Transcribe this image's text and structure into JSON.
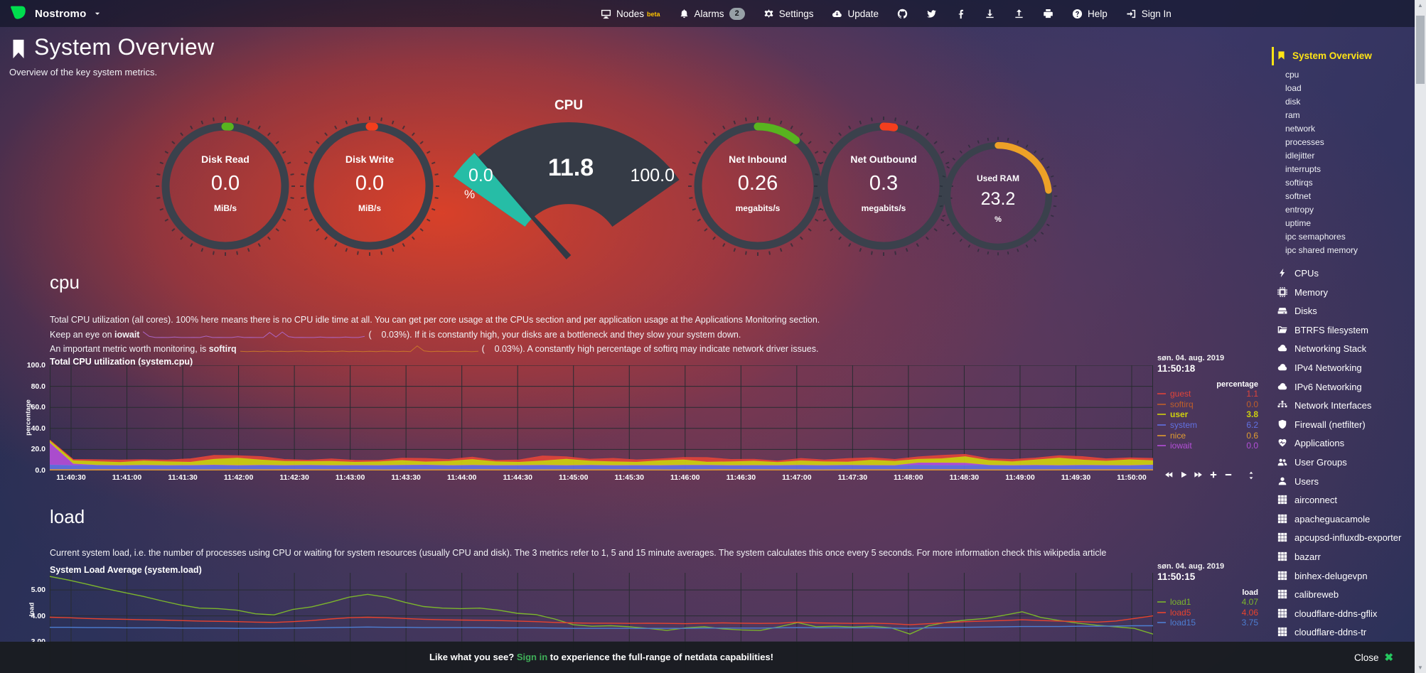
{
  "topbar": {
    "brand": "Nostromo",
    "items": [
      {
        "id": "nodes",
        "label": "Nodes",
        "sup": "beta",
        "icon": "desktop"
      },
      {
        "id": "alarms",
        "label": "Alarms",
        "badge": "2",
        "icon": "bell"
      },
      {
        "id": "settings",
        "label": "Settings",
        "icon": "gear"
      },
      {
        "id": "update",
        "label": "Update",
        "icon": "cloud-download"
      },
      {
        "id": "github",
        "icon": "github"
      },
      {
        "id": "twitter",
        "icon": "twitter"
      },
      {
        "id": "facebook",
        "icon": "facebook"
      },
      {
        "id": "download",
        "icon": "download"
      },
      {
        "id": "upload",
        "icon": "upload"
      },
      {
        "id": "print",
        "icon": "print"
      },
      {
        "id": "help",
        "label": "Help",
        "icon": "question"
      },
      {
        "id": "signin",
        "label": "Sign In",
        "icon": "sign-in"
      }
    ]
  },
  "header": {
    "title": "System Overview",
    "subtitle": "Overview of the key system metrics."
  },
  "gauges": {
    "items": [
      {
        "kind": "pie",
        "title": "Disk Read",
        "value": "0.0",
        "unit": "MiB/s",
        "color": "#58b41f",
        "fraction": 0.012
      },
      {
        "kind": "pie",
        "title": "Disk Write",
        "value": "0.0",
        "unit": "MiB/s",
        "color": "#f43e1d",
        "fraction": 0.012
      },
      {
        "kind": "meter",
        "title": "CPU",
        "value": "11.8",
        "min": "0.0",
        "max": "100.0",
        "unit": "%",
        "color": "#26bda6",
        "fraction": 0.118
      },
      {
        "kind": "pie",
        "title": "Net Inbound",
        "value": "0.26",
        "unit": "megabits/s",
        "color": "#58b41f",
        "fraction": 0.11
      },
      {
        "kind": "pie",
        "title": "Net Outbound",
        "value": "0.3",
        "unit": "megabits/s",
        "color": "#f43e1d",
        "fraction": 0.028
      },
      {
        "kind": "pie",
        "title": "Used RAM",
        "value": "23.2",
        "unit": "%",
        "color": "#eda127",
        "fraction": 0.232
      }
    ]
  },
  "cpu_section": {
    "heading": "cpu",
    "line1": "Total CPU utilization (all cores). 100% here means there is no CPU idle time at all. You can get per core usage at the CPUs section and per application usage at the Applications Monitoring section.",
    "line2_pre": "Keep an eye on ",
    "line2_term": "iowait",
    "line2_post": "(    0.03%). If it is constantly high, your disks are a bottleneck and they slow your system down.",
    "line3_pre": "An important metric worth monitoring, is ",
    "line3_term": "softirq",
    "line3_post": "(    0.03%). A constantly high percentage of softirq may indicate network driver issues.",
    "spark_iowait": [
      0.85,
      0.25,
      0.1,
      0.12,
      0.1,
      0.15,
      0.1,
      0.1,
      0.12,
      0.1,
      0.28,
      0.1,
      0.12,
      0.1,
      0.1,
      0.2,
      0.1,
      0.12,
      0.1,
      0.1,
      0.75,
      0.15,
      0.8,
      0.2,
      0.1,
      0.12,
      0.1,
      0.1,
      0.15,
      0.1,
      0.12,
      0.1,
      0.15,
      0.1,
      0.1,
      0.25
    ],
    "spark_softirq": [
      0.15,
      0.12,
      0.15,
      0.12,
      0.18,
      0.12,
      0.15,
      0.12,
      0.15,
      0.18,
      0.12,
      0.15,
      0.12,
      0.15,
      0.12,
      0.18,
      0.12,
      0.15,
      0.12,
      0.15,
      0.12,
      0.18,
      0.15,
      0.12,
      0.15,
      0.12,
      0.85,
      0.2,
      0.12,
      0.15,
      0.12,
      0.15,
      0.12,
      0.15,
      0.12,
      0.15
    ]
  },
  "load_section": {
    "heading": "load",
    "desc_pre": "Current system load, i.e. the number of processes using CPU or waiting for system resources (usually CPU and disk). The 3 metrics refer to 1, 5 and 15 minute averages. The system calculates this once every 5 seconds. For more information check ",
    "desc_link": "this wikipedia article"
  },
  "chart_data": [
    {
      "id": "cpu",
      "type": "area",
      "title": "Total CPU utilization (system.cpu)",
      "ylabel": "percentage",
      "units": "percentage",
      "date": "søn. 04. aug. 2019",
      "time": "11:50:18",
      "ylim": [
        0,
        100
      ],
      "ytick_vals": [
        0,
        20,
        40,
        60,
        80,
        100
      ],
      "ytick_labels": [
        "0.0",
        "20.0",
        "40.0",
        "60.0",
        "80.0",
        "100.0"
      ],
      "xticks": [
        "11:40:30",
        "11:41:00",
        "11:41:30",
        "11:42:00",
        "11:42:30",
        "11:43:00",
        "11:43:30",
        "11:44:00",
        "11:44:30",
        "11:45:00",
        "11:45:30",
        "11:46:00",
        "11:46:30",
        "11:47:00",
        "11:47:30",
        "11:48:00",
        "11:48:30",
        "11:49:00",
        "11:49:30",
        "11:50:00"
      ],
      "legend_position": "right",
      "grid": true,
      "stack_order": [
        "system",
        "iowait",
        "user",
        "guest"
      ],
      "series": [
        {
          "name": "guest",
          "value": "1.1",
          "color": "#e0443a",
          "render": "stack",
          "data": [
            0.5,
            1,
            1.5,
            2,
            1,
            1.5,
            3,
            3.5,
            2,
            3,
            1.5,
            1,
            2,
            1.5,
            1,
            2,
            3,
            1.5,
            2,
            1,
            2,
            4.5,
            2,
            1.5,
            3,
            2,
            1.5,
            2,
            4,
            2,
            1.5,
            1,
            2,
            1.5,
            3,
            2,
            1.5,
            2,
            3,
            2,
            1.5,
            2,
            1.5,
            2,
            3,
            2,
            1.5,
            2
          ]
        },
        {
          "name": "softirq",
          "value": "0.0",
          "color": "#bf5f2a",
          "render": "line",
          "data": [
            0.15,
            0.2,
            0.12,
            0.18,
            0.15,
            0.2,
            0.12,
            0.15,
            0.18,
            0.12,
            0.2,
            0.15
          ]
        },
        {
          "name": "user",
          "value": "3.8",
          "color": "#cfd10e",
          "render": "stack",
          "bold": true,
          "data": [
            2,
            3,
            3.5,
            3,
            4,
            3.5,
            3,
            5.5,
            7,
            5,
            4,
            3.5,
            4,
            3,
            3.5,
            4.5,
            3,
            4,
            5.5,
            3.5,
            3,
            4,
            6,
            4,
            3.5,
            3,
            4.5,
            5,
            3,
            3.5,
            4,
            3,
            4.2,
            3.5,
            3,
            5,
            4,
            3.5,
            4,
            6,
            4.5,
            3.5,
            5,
            7,
            5,
            4,
            5.5,
            4
          ]
        },
        {
          "name": "system",
          "value": "6.2",
          "color": "#6271e2",
          "render": "stack",
          "data": [
            5.5,
            5.0,
            5.2,
            5.0,
            5.3,
            5.0,
            5.1,
            5.4,
            5.0,
            5.2,
            5.0,
            5.3,
            5.0,
            5.1,
            5.0,
            5.2,
            5.4,
            5.0,
            5.2,
            5.0,
            5.1,
            5.3,
            5.0,
            5.2,
            5.0,
            5.1,
            5.0,
            5.3,
            5.2,
            5.0,
            5.1,
            5.0,
            5.2,
            5.0,
            5.3,
            5.1,
            5.0,
            5.2,
            5.0,
            5.1,
            5.2,
            5.0,
            5.3,
            5.0,
            5.2,
            5.1,
            5.0,
            5.5
          ]
        },
        {
          "name": "nice",
          "value": "0.6",
          "color": "#e09c30",
          "render": "line",
          "data": [
            0.6,
            0.7,
            0.6,
            0.5,
            0.6,
            0.7,
            0.6,
            0.5,
            0.6,
            0.7,
            0.5,
            0.6,
            0.6,
            0.5,
            0.7,
            0.6,
            0.5,
            0.6,
            0.7,
            0.6,
            0.5,
            0.6,
            0.6,
            0.6
          ]
        },
        {
          "name": "iowait",
          "value": "0.0",
          "color": "#b44fd8",
          "render": "stack",
          "data": [
            21,
            1.5,
            0,
            0,
            0,
            0,
            0,
            0,
            0,
            0,
            0,
            0,
            0,
            0,
            0,
            0,
            0,
            0,
            0,
            0,
            0,
            0,
            0,
            0,
            0,
            0,
            0,
            0,
            0,
            0,
            0,
            0,
            0,
            0,
            0,
            0,
            0,
            2.2,
            2.4,
            2.2,
            0,
            0,
            0,
            0,
            0,
            0,
            0,
            0
          ]
        }
      ],
      "toolbar": true
    },
    {
      "id": "load",
      "type": "line",
      "title": "System Load Average (system.load)",
      "ylabel": "load",
      "units": "load",
      "date": "søn. 04. aug. 2019",
      "time": "11:50:15",
      "ylim": [
        1.8,
        5.66
      ],
      "ytick_vals": [
        3,
        4,
        5
      ],
      "ytick_labels": [
        "3.00",
        "4.00",
        "5.00"
      ],
      "xticks": [],
      "vgrid_count": 20,
      "legend_position": "right",
      "grid": true,
      "series": [
        {
          "name": "load1",
          "value": "4.07",
          "color": "#7cb52c",
          "render": "line",
          "data": [
            5.52,
            5.38,
            5.22,
            5.05,
            4.9,
            4.75,
            4.58,
            4.42,
            4.3,
            4.28,
            4.22,
            4.08,
            4.04,
            4.25,
            4.35,
            4.52,
            4.72,
            4.83,
            4.72,
            4.52,
            4.36,
            4.3,
            4.28,
            4.3,
            4.22,
            4.1,
            4.05,
            3.88,
            3.66,
            3.6,
            3.62,
            3.58,
            3.52,
            3.44,
            3.54,
            3.58,
            3.5,
            3.46,
            3.44,
            3.58,
            3.74,
            3.58,
            3.6,
            3.57,
            3.6,
            3.54,
            3.3,
            3.62,
            3.76,
            3.84,
            3.9,
            4.02,
            4.16,
            3.94,
            3.82,
            3.72,
            3.64,
            3.58,
            3.52,
            3.3
          ]
        },
        {
          "name": "load5",
          "value": "4.06",
          "color": "#e8432e",
          "render": "line",
          "data": [
            3.95,
            3.93,
            3.9,
            3.88,
            3.87,
            3.85,
            3.84,
            3.82,
            3.8,
            3.79,
            3.78,
            3.76,
            3.75,
            3.78,
            3.82,
            3.88,
            3.93,
            3.95,
            3.93,
            3.9,
            3.87,
            3.85,
            3.84,
            3.83,
            3.82,
            3.8,
            3.78,
            3.75,
            3.73,
            3.72,
            3.72,
            3.71,
            3.72,
            3.71,
            3.7,
            3.72,
            3.73,
            3.72,
            3.71,
            3.72,
            3.76,
            3.73,
            3.72,
            3.71,
            3.72,
            3.7,
            3.66,
            3.7,
            3.74,
            3.78,
            3.8,
            3.82,
            3.85,
            3.82,
            3.8,
            3.78,
            3.76,
            3.8,
            3.9,
            4.0
          ]
        },
        {
          "name": "load15",
          "value": "3.75",
          "color": "#4d7ed2",
          "render": "line",
          "data": [
            3.56,
            3.56,
            3.55,
            3.55,
            3.54,
            3.54,
            3.54,
            3.53,
            3.53,
            3.53,
            3.52,
            3.52,
            3.52,
            3.53,
            3.54,
            3.55,
            3.56,
            3.57,
            3.56,
            3.56,
            3.55,
            3.55,
            3.55,
            3.55,
            3.54,
            3.54,
            3.54,
            3.53,
            3.52,
            3.52,
            3.52,
            3.52,
            3.52,
            3.52,
            3.52,
            3.53,
            3.53,
            3.53,
            3.53,
            3.54,
            3.55,
            3.54,
            3.54,
            3.54,
            3.54,
            3.53,
            3.52,
            3.54,
            3.55,
            3.56,
            3.57,
            3.58,
            3.59,
            3.59,
            3.59,
            3.6,
            3.6,
            3.61,
            3.62,
            3.62
          ]
        }
      ]
    }
  ],
  "sidebar": {
    "active": "System Overview",
    "sub": [
      "cpu",
      "load",
      "disk",
      "ram",
      "network",
      "processes",
      "idlejitter",
      "interrupts",
      "softirqs",
      "softnet",
      "entropy",
      "uptime",
      "ipc semaphores",
      "ipc shared memory"
    ],
    "sections": [
      {
        "label": "CPUs",
        "icon": "bolt"
      },
      {
        "label": "Memory",
        "icon": "chip"
      },
      {
        "label": "Disks",
        "icon": "hdd"
      },
      {
        "label": "BTRFS filesystem",
        "icon": "folder"
      },
      {
        "label": "Networking Stack",
        "icon": "cloud"
      },
      {
        "label": "IPv4 Networking",
        "icon": "cloud"
      },
      {
        "label": "IPv6 Networking",
        "icon": "cloud"
      },
      {
        "label": "Network Interfaces",
        "icon": "sitemap"
      },
      {
        "label": "Firewall (netfilter)",
        "icon": "shield"
      },
      {
        "label": "Applications",
        "icon": "heartbeat"
      },
      {
        "label": "User Groups",
        "icon": "users"
      },
      {
        "label": "Users",
        "icon": "user"
      },
      {
        "label": "airconnect",
        "icon": "grid"
      },
      {
        "label": "apacheguacamole",
        "icon": "grid"
      },
      {
        "label": "apcupsd-influxdb-exporter",
        "icon": "grid"
      },
      {
        "label": "bazarr",
        "icon": "grid"
      },
      {
        "label": "binhex-delugevpn",
        "icon": "grid"
      },
      {
        "label": "calibreweb",
        "icon": "grid"
      },
      {
        "label": "cloudflare-ddns-gflix",
        "icon": "grid"
      },
      {
        "label": "cloudflare-ddns-tr",
        "icon": "grid"
      }
    ]
  },
  "bottom_bar": {
    "prefix": "Like what you see? ",
    "link": "Sign in",
    "suffix": " to experience the full-range of netdata capabilities!",
    "close_label": "Close",
    "close_x": "✖"
  }
}
